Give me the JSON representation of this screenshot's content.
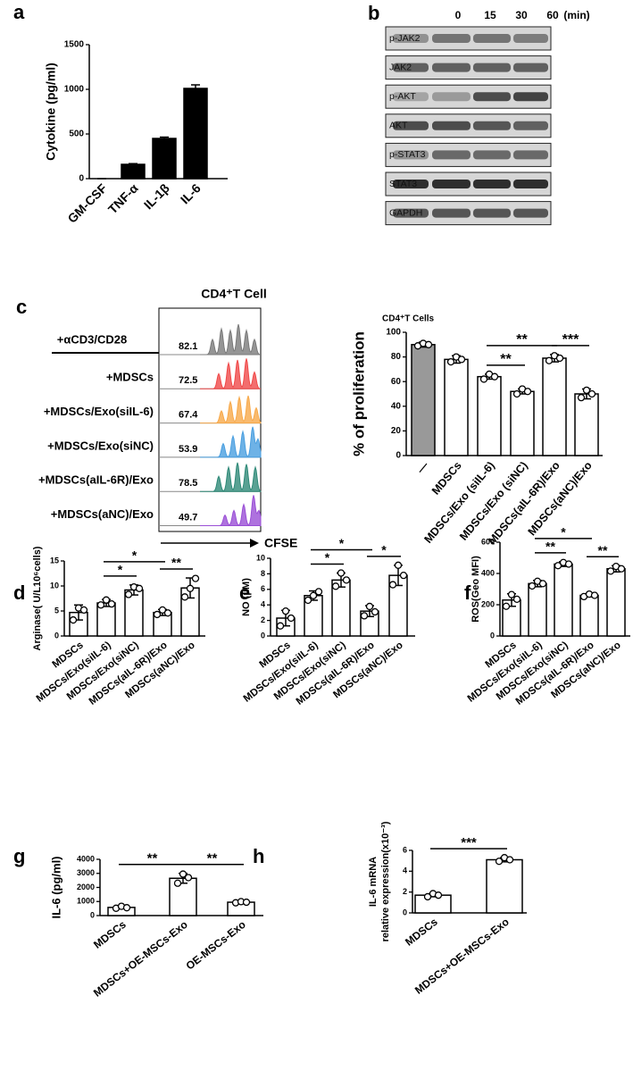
{
  "blot": {
    "label": "b",
    "times": [
      0,
      15,
      30,
      60
    ],
    "unit": "(min)",
    "rows": [
      "p-JAK2",
      "JAK2",
      "p-AKT",
      "AKT",
      "p-STAT3",
      "STAT3",
      "GAPDH"
    ]
  },
  "flow": {
    "label": "c",
    "title": "CD4⁺T Cell",
    "xlabel": "CFSE",
    "rows": [
      {
        "name": "+αCD3/CD28",
        "percent": 82.1,
        "color": "#7a7a7a"
      },
      {
        "name": "+MDSCs",
        "percent": 72.5,
        "color": "#f04a4a"
      },
      {
        "name": "+MDSCs/Exo(siIL-6)",
        "percent": 67.4,
        "color": "#f7a94a"
      },
      {
        "name": "+MDSCs/Exo(siNC)",
        "percent": 53.9,
        "color": "#4a9fe0"
      },
      {
        "name": "+MDSCs(aIL-6R)/Exo",
        "percent": 78.5,
        "color": "#2f8a78"
      },
      {
        "name": "+MDSCs(aNC)/Exo",
        "percent": 49.7,
        "color": "#9a4fd6"
      }
    ]
  },
  "chart_data": [
    {
      "type": "bar",
      "label": "a",
      "ylabel": "Cytokine (pg/ml)",
      "categories": [
        "GM-CSF",
        "TNF-α",
        "IL-1β",
        "IL-6"
      ],
      "values": [
        0,
        160,
        450,
        1010
      ],
      "errors": [
        0,
        8,
        15,
        40
      ],
      "color": "#000000",
      "ylim": [
        0,
        1500
      ],
      "yticks": [
        0,
        500,
        1000,
        1500
      ]
    },
    {
      "type": "bar",
      "title": "CD4⁺T Cells",
      "ylabel": "% of proliferation",
      "categories": [
        "—",
        "MDSCs",
        "MDSCs/Exo (siIL-6)",
        "MDSCs/Exo (siNC)",
        "MDSCs(aIL-6R)/Exo",
        "MDSCs(aNC)/Exo"
      ],
      "values": [
        90,
        78,
        64,
        52,
        79,
        50
      ],
      "errors": [
        2,
        3,
        2,
        2,
        3,
        4
      ],
      "points": [
        [
          89,
          91,
          90
        ],
        [
          76,
          80,
          78
        ],
        [
          62,
          66,
          64
        ],
        [
          50,
          54,
          52
        ],
        [
          77,
          81,
          79
        ],
        [
          47,
          53,
          50
        ]
      ],
      "colors": [
        "#999999",
        "#ffffff",
        "#ffffff",
        "#ffffff",
        "#ffffff",
        "#ffffff"
      ],
      "ylim": [
        0,
        100
      ],
      "yticks": [
        0,
        20,
        40,
        60,
        80,
        100
      ],
      "significance": [
        {
          "label": "**",
          "pair": [
            2,
            3
          ]
        },
        {
          "label": "**",
          "pair": [
            2,
            4
          ]
        },
        {
          "label": "***",
          "pair": [
            4,
            5
          ]
        }
      ]
    },
    {
      "type": "bar",
      "label": "d",
      "ylabel": "Arginase( U/L10⁶cells)",
      "categories": [
        "MDSCs",
        "MDSCs/Exo(siIL-6)",
        "MDSCs/Exo(siNC)",
        "MDSCs(aIL-6R)/Exo",
        "MDSCs(aNC)/Exo"
      ],
      "values": [
        4.7,
        6.6,
        9.2,
        4.7,
        9.6
      ],
      "errors": [
        1.5,
        0.7,
        1,
        0.6,
        2
      ],
      "points": [
        [
          3.2,
          5.6,
          5.2
        ],
        [
          6.2,
          7.2,
          6.4
        ],
        [
          8.3,
          9.8,
          9.5
        ],
        [
          4.3,
          5.2,
          4.6
        ],
        [
          7.8,
          9.5,
          11.5
        ]
      ],
      "color": "#ffffff",
      "ylim": [
        0,
        15
      ],
      "yticks": [
        0,
        5,
        10,
        15
      ],
      "significance": [
        {
          "label": "*",
          "pair": [
            1,
            2
          ]
        },
        {
          "label": "*",
          "pair": [
            1,
            3
          ]
        },
        {
          "label": "**",
          "pair": [
            3,
            4
          ]
        }
      ]
    },
    {
      "type": "bar",
      "label": "e",
      "ylabel": "NO (μM)",
      "categories": [
        "MDSCs",
        "MDSCs/Exo(siIL-6)",
        "MDSCs/Exo(siNC)",
        "MDSCs(aIL-6R)/Exo",
        "MDSCs(aNC)/Exo"
      ],
      "values": [
        2.3,
        5.2,
        7.2,
        3.2,
        7.8
      ],
      "errors": [
        1,
        0.6,
        0.9,
        0.7,
        1.3
      ],
      "points": [
        [
          1.3,
          3.2,
          2.3
        ],
        [
          4.6,
          5.2,
          5.7
        ],
        [
          6.4,
          8.1,
          7.2
        ],
        [
          2.6,
          3.8,
          3.1
        ],
        [
          6.6,
          9.1,
          7.8
        ]
      ],
      "color": "#ffffff",
      "ylim": [
        0,
        10
      ],
      "yticks": [
        0,
        2,
        4,
        6,
        8,
        10
      ],
      "significance": [
        {
          "label": "*",
          "pair": [
            1,
            2
          ]
        },
        {
          "label": "*",
          "pair": [
            1,
            3
          ]
        },
        {
          "label": "*",
          "pair": [
            3,
            4
          ]
        }
      ]
    },
    {
      "type": "bar",
      "label": "f",
      "ylabel": "ROS(Geo MFI)",
      "categories": [
        "MDSCs",
        "MDSCs/Exo(siIL-6)",
        "MDSCs/Exo(siNC)",
        "MDSCs(aIL-6R)/Exo",
        "MDSCs(aNC)/Exo"
      ],
      "values": [
        230,
        335,
        460,
        260,
        430
      ],
      "errors": [
        40,
        20,
        15,
        10,
        20
      ],
      "points": [
        [
          190,
          265,
          235
        ],
        [
          320,
          350,
          335
        ],
        [
          450,
          470,
          460
        ],
        [
          252,
          268,
          260
        ],
        [
          415,
          445,
          430
        ]
      ],
      "color": "#ffffff",
      "ylim": [
        0,
        600
      ],
      "yticks": [
        0,
        200,
        400,
        600
      ],
      "significance": [
        {
          "label": "**",
          "pair": [
            1,
            2
          ]
        },
        {
          "label": "*",
          "pair": [
            1,
            3
          ]
        },
        {
          "label": "**",
          "pair": [
            3,
            4
          ]
        }
      ]
    },
    {
      "type": "bar",
      "label": "g",
      "ylabel": "IL-6 (pg/ml)",
      "categories": [
        "MDSCs",
        "MDSCs+OE-MSCs-Exo",
        "OE-MSCs-Exo"
      ],
      "values": [
        580,
        2650,
        950
      ],
      "errors": [
        80,
        350,
        40
      ],
      "points": [
        [
          520,
          660,
          560
        ],
        [
          2300,
          2950,
          2700
        ],
        [
          910,
          990,
          950
        ]
      ],
      "color": "#ffffff",
      "ylim": [
        0,
        4000
      ],
      "yticks": [
        0,
        1000,
        2000,
        3000,
        4000
      ],
      "significance": [
        {
          "label": "**",
          "pair": [
            0,
            1
          ]
        },
        {
          "label": "**",
          "pair": [
            1,
            2
          ]
        }
      ]
    },
    {
      "type": "bar",
      "label": "h",
      "ylabel": [
        "IL-6 mRNA",
        "relative expression(x10⁻³)"
      ],
      "categories": [
        "MDSCs",
        "MDSCs+OE-MSCs-Exo"
      ],
      "values": [
        1.7,
        5.1
      ],
      "errors": [
        0.15,
        0.2
      ],
      "points": [
        [
          1.55,
          1.85,
          1.7
        ],
        [
          4.95,
          5.3,
          5.1
        ]
      ],
      "color": "#ffffff",
      "ylim": [
        0,
        6
      ],
      "yticks": [
        0,
        2,
        4,
        6
      ],
      "significance": [
        {
          "label": "***",
          "pair": [
            0,
            1
          ]
        }
      ]
    }
  ]
}
